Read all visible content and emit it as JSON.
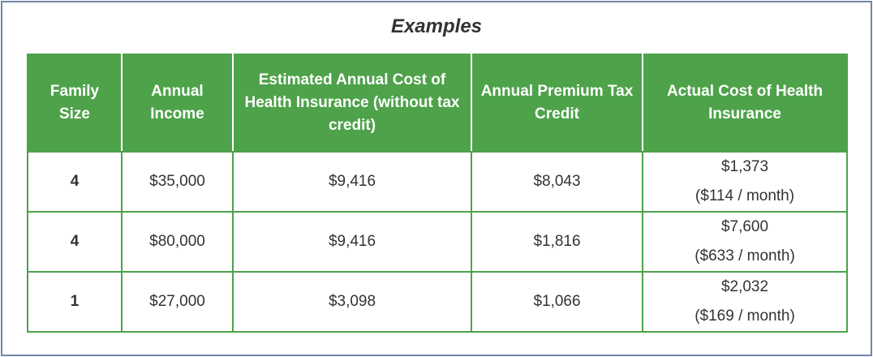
{
  "title": "Examples",
  "headers": [
    "Family Size",
    "Annual Income",
    "Estimated Annual Cost of Health Insurance (without tax credit)",
    "Annual Premium Tax Credit",
    "Actual Cost of Health Insurance"
  ],
  "rows": [
    {
      "family_size": "4",
      "income": "$35,000",
      "estimated_cost": "$9,416",
      "tax_credit": "$8,043",
      "actual_cost": "$1,373",
      "actual_monthly": "($114 / month)"
    },
    {
      "family_size": "4",
      "income": "$80,000",
      "estimated_cost": "$9,416",
      "tax_credit": "$1,816",
      "actual_cost": "$7,600",
      "actual_monthly": "($633 / month)"
    },
    {
      "family_size": "1",
      "income": "$27,000",
      "estimated_cost": "$3,098",
      "tax_credit": "$1,066",
      "actual_cost": "$2,032",
      "actual_monthly": "($169 / month)"
    }
  ],
  "colors": {
    "header_green": "#4ea24a",
    "frame_border": "#6f87a8",
    "text": "#333333"
  }
}
